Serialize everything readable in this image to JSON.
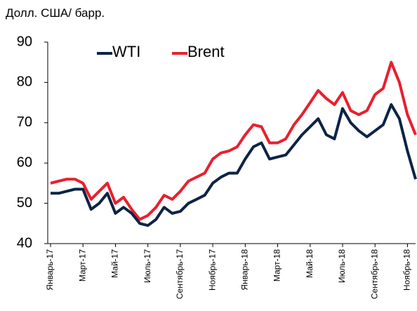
{
  "chart_data": {
    "type": "line",
    "y_axis_label": "Долл. США/ барр.",
    "categories": [
      "Январь-17",
      null,
      null,
      null,
      "Март-17",
      null,
      null,
      null,
      "Май-17",
      null,
      null,
      null,
      "Июль-17",
      null,
      null,
      null,
      "Сентябрь-17",
      null,
      null,
      null,
      "Ноябрь-17",
      null,
      null,
      null,
      "Январь-18",
      null,
      null,
      null,
      "Март-18",
      null,
      null,
      null,
      "Май-18",
      null,
      null,
      null,
      "Июль-18",
      null,
      null,
      null,
      "Сентябрь-18",
      null,
      null,
      null,
      "Ноябрь-18",
      null
    ],
    "series": [
      {
        "name": "WTI",
        "color": "#0d2346",
        "values": [
          52.5,
          52.5,
          53,
          53.5,
          53.5,
          48.5,
          50,
          52.5,
          47.5,
          49,
          47.5,
          45,
          44.5,
          46,
          49,
          47.5,
          48,
          50,
          51,
          52,
          55,
          56.5,
          57.5,
          57.5,
          61,
          64,
          65,
          61,
          61.5,
          62,
          64.5,
          67,
          69,
          71,
          67,
          66,
          73.5,
          70,
          68,
          66.5,
          68,
          69.5,
          74.5,
          71,
          63,
          56
        ]
      },
      {
        "name": "Brent",
        "color": "#e8202e",
        "values": [
          55,
          55.5,
          56,
          56,
          55,
          51,
          53,
          55,
          50,
          51.5,
          48.5,
          46,
          47,
          49,
          52,
          51,
          53,
          55.5,
          56.5,
          57.5,
          61,
          62.5,
          63,
          64,
          67,
          69.5,
          69,
          65,
          65,
          66,
          69.5,
          72,
          75,
          78,
          76,
          74.5,
          77.5,
          73,
          72,
          73,
          77,
          78.5,
          85,
          80,
          72,
          67
        ]
      }
    ],
    "ylim": [
      40,
      90
    ],
    "yticks": [
      40,
      50,
      60,
      70,
      80,
      90
    ],
    "legend": "top"
  }
}
